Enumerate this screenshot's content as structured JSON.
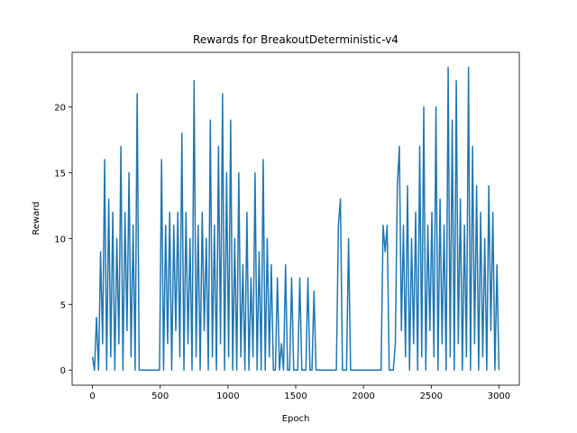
{
  "chart_data": {
    "type": "line",
    "title": "Rewards for BreakoutDeterministic-v4",
    "x_label": "Epoch",
    "y_label": "Reward",
    "x": [
      0,
      15,
      30,
      45,
      60,
      75,
      90,
      105,
      120,
      135,
      150,
      165,
      180,
      195,
      210,
      225,
      240,
      255,
      270,
      285,
      300,
      315,
      330,
      345,
      360,
      375,
      390,
      405,
      420,
      435,
      450,
      465,
      480,
      495,
      510,
      525,
      540,
      555,
      570,
      585,
      600,
      615,
      630,
      645,
      660,
      675,
      690,
      705,
      720,
      735,
      750,
      765,
      780,
      795,
      810,
      825,
      840,
      855,
      870,
      885,
      900,
      915,
      930,
      945,
      960,
      975,
      990,
      1005,
      1020,
      1035,
      1050,
      1065,
      1080,
      1095,
      1110,
      1125,
      1140,
      1155,
      1170,
      1185,
      1200,
      1215,
      1230,
      1245,
      1260,
      1275,
      1290,
      1305,
      1320,
      1335,
      1350,
      1365,
      1380,
      1395,
      1410,
      1425,
      1440,
      1455,
      1470,
      1485,
      1500,
      1515,
      1530,
      1545,
      1560,
      1575,
      1590,
      1605,
      1620,
      1635,
      1650,
      1665,
      1680,
      1695,
      1710,
      1725,
      1740,
      1755,
      1770,
      1785,
      1800,
      1815,
      1830,
      1845,
      1860,
      1875,
      1890,
      1905,
      1920,
      1935,
      1950,
      1965,
      1980,
      1995,
      2010,
      2025,
      2040,
      2055,
      2070,
      2085,
      2100,
      2115,
      2130,
      2145,
      2160,
      2175,
      2190,
      2205,
      2220,
      2235,
      2250,
      2265,
      2280,
      2295,
      2310,
      2325,
      2340,
      2355,
      2370,
      2385,
      2400,
      2415,
      2430,
      2445,
      2460,
      2475,
      2490,
      2505,
      2520,
      2535,
      2550,
      2565,
      2580,
      2595,
      2610,
      2625,
      2640,
      2655,
      2670,
      2685,
      2700,
      2715,
      2730,
      2745,
      2760,
      2775,
      2790,
      2805,
      2820,
      2835,
      2850,
      2865,
      2880,
      2895,
      2910,
      2925,
      2940,
      2955,
      2970,
      2985,
      3000
    ],
    "series": [
      {
        "color": "#1f77b4",
        "values": [
          1,
          0,
          4,
          0,
          9,
          2,
          16,
          0,
          13,
          1,
          12,
          0,
          10,
          2,
          17,
          0,
          12,
          3,
          15,
          1,
          11,
          0,
          21,
          0,
          0,
          0,
          0,
          0,
          0,
          0,
          0,
          0,
          0,
          0,
          16,
          0,
          11,
          2,
          12,
          0,
          11,
          3,
          12,
          1,
          18,
          0,
          12,
          2,
          10,
          0,
          22,
          1,
          11,
          0,
          12,
          3,
          10,
          0,
          19,
          1,
          11,
          0,
          17,
          2,
          21,
          0,
          15,
          1,
          19,
          0,
          10,
          0,
          15,
          1,
          8,
          0,
          12,
          0,
          7,
          1,
          15,
          0,
          9,
          0,
          16,
          0,
          10,
          1,
          8,
          0,
          0,
          7,
          0,
          2,
          0,
          8,
          0,
          0,
          7,
          0,
          0,
          0,
          7,
          0,
          0,
          0,
          7,
          0,
          0,
          6,
          0,
          0,
          0,
          0,
          0,
          0,
          0,
          0,
          0,
          0,
          0,
          11,
          13,
          0,
          0,
          0,
          10,
          0,
          0,
          0,
          0,
          0,
          0,
          0,
          0,
          0,
          0,
          0,
          0,
          0,
          0,
          0,
          0,
          11,
          9,
          11,
          0,
          0,
          0,
          2,
          14,
          17,
          3,
          11,
          1,
          14,
          0,
          10,
          2,
          12,
          0,
          17,
          1,
          20,
          0,
          11,
          3,
          12,
          1,
          20,
          0,
          13,
          2,
          11,
          0,
          23,
          1,
          19,
          0,
          22,
          2,
          13,
          0,
          11,
          1,
          23,
          0,
          17,
          2,
          14,
          0,
          12,
          1,
          10,
          0,
          14,
          3,
          12,
          0,
          8,
          0
        ]
      }
    ],
    "xlim": [
      -150,
      3150
    ],
    "ylim": [
      -1.15,
      24.15
    ],
    "xticks": [
      0,
      500,
      1000,
      1500,
      2000,
      2500,
      3000
    ],
    "yticks": [
      0,
      5,
      10,
      15,
      20
    ]
  }
}
